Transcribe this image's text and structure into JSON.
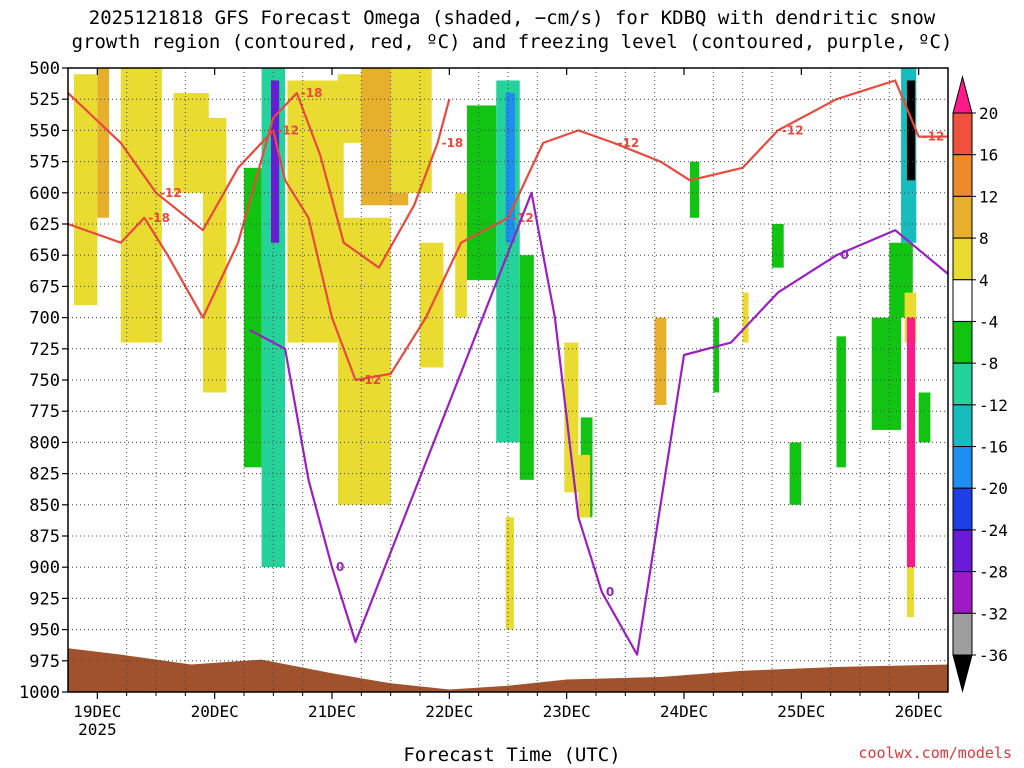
{
  "title": {
    "line1": "2025121818 GFS Forecast Omega (shaded, −cm/s) for KDBQ with dendritic snow",
    "line2": "growth region (contoured, red, ºC) and freezing level (contoured, purple, ºC)"
  },
  "credit": "coolwx.com/models",
  "colors": {
    "dgz_contour": "#e84a3f",
    "freezing_contour": "#9b1fc4",
    "terrain": "#a0522d",
    "grid": "#444444"
  },
  "chart_data": {
    "type": "heatmap",
    "xlabel": "Forecast Time (UTC)",
    "ylabel": "",
    "y_ticks": [
      "500",
      "525",
      "550",
      "575",
      "600",
      "625",
      "650",
      "675",
      "700",
      "725",
      "750",
      "775",
      "800",
      "825",
      "850",
      "875",
      "900",
      "925",
      "950",
      "975",
      "1000"
    ],
    "x_ticks": [
      "19DEC",
      "20DEC",
      "21DEC",
      "22DEC",
      "23DEC",
      "24DEC",
      "25DEC",
      "26DEC"
    ],
    "x_year": "2025",
    "ylim": [
      1000,
      500
    ],
    "xlim_days": [
      18.75,
      26.25
    ],
    "grid": true,
    "colorbar": {
      "labels": [
        "20",
        "16",
        "12",
        "8",
        "4",
        "-4",
        "-8",
        "-12",
        "-16",
        "-20",
        "-24",
        "-28",
        "-32",
        "-36"
      ],
      "colors": [
        "#ff1a8c",
        "#f0503c",
        "#ec8a2c",
        "#e6b02c",
        "#e9db2f",
        "#ffffff",
        "#12c412",
        "#23d39a",
        "#17bcbc",
        "#1e8ff0",
        "#1e3ee6",
        "#6a1ad9",
        "#9d1ac6",
        "#9e9e9e",
        "#000000"
      ]
    },
    "omega_patches": [
      {
        "x": [
          18.8,
          19.0
        ],
        "p": [
          505,
          690
        ],
        "v": 5
      },
      {
        "x": [
          19.0,
          19.1
        ],
        "p": [
          500,
          620
        ],
        "v": 10
      },
      {
        "x": [
          19.2,
          19.55
        ],
        "p": [
          500,
          720
        ],
        "v": 5
      },
      {
        "x": [
          19.65,
          19.95
        ],
        "p": [
          520,
          600
        ],
        "v": 5
      },
      {
        "x": [
          19.9,
          20.1
        ],
        "p": [
          540,
          760
        ],
        "v": 5
      },
      {
        "x": [
          20.25,
          20.4
        ],
        "p": [
          580,
          820
        ],
        "v": -6
      },
      {
        "x": [
          20.4,
          20.6
        ],
        "p": [
          500,
          900
        ],
        "v": -10
      },
      {
        "x": [
          20.48,
          20.55
        ],
        "p": [
          510,
          640
        ],
        "v": -26
      },
      {
        "x": [
          20.62,
          21.1
        ],
        "p": [
          510,
          720
        ],
        "v": 5
      },
      {
        "x": [
          21.05,
          21.35
        ],
        "p": [
          505,
          560
        ],
        "v": 5
      },
      {
        "x": [
          21.25,
          21.65
        ],
        "p": [
          500,
          610
        ],
        "v": 10
      },
      {
        "x": [
          21.5,
          21.85
        ],
        "p": [
          500,
          600
        ],
        "v": 5
      },
      {
        "x": [
          21.05,
          21.5
        ],
        "p": [
          620,
          850
        ],
        "v": 5
      },
      {
        "x": [
          21.75,
          21.95
        ],
        "p": [
          640,
          740
        ],
        "v": 5
      },
      {
        "x": [
          22.05,
          22.15
        ],
        "p": [
          600,
          700
        ],
        "v": 5
      },
      {
        "x": [
          22.15,
          22.4
        ],
        "p": [
          530,
          670
        ],
        "v": -6
      },
      {
        "x": [
          22.4,
          22.6
        ],
        "p": [
          510,
          800
        ],
        "v": -10
      },
      {
        "x": [
          22.48,
          22.56
        ],
        "p": [
          520,
          640
        ],
        "v": -18
      },
      {
        "x": [
          22.6,
          22.72
        ],
        "p": [
          650,
          830
        ],
        "v": -6
      },
      {
        "x": [
          22.48,
          22.55
        ],
        "p": [
          860,
          950
        ],
        "v": 5
      },
      {
        "x": [
          22.98,
          23.1
        ],
        "p": [
          720,
          840
        ],
        "v": 5
      },
      {
        "x": [
          23.12,
          23.22
        ],
        "p": [
          780,
          860
        ],
        "v": -6
      },
      {
        "x": [
          23.1,
          23.2
        ],
        "p": [
          810,
          860
        ],
        "v": 5
      },
      {
        "x": [
          23.75,
          23.85
        ],
        "p": [
          700,
          770
        ],
        "v": 10
      },
      {
        "x": [
          24.05,
          24.13
        ],
        "p": [
          575,
          620
        ],
        "v": -6
      },
      {
        "x": [
          24.25,
          24.3
        ],
        "p": [
          700,
          760
        ],
        "v": -6
      },
      {
        "x": [
          24.5,
          24.55
        ],
        "p": [
          680,
          720
        ],
        "v": 5
      },
      {
        "x": [
          24.75,
          24.85
        ],
        "p": [
          625,
          660
        ],
        "v": -6
      },
      {
        "x": [
          24.9,
          25.0
        ],
        "p": [
          800,
          850
        ],
        "v": -6
      },
      {
        "x": [
          25.3,
          25.38
        ],
        "p": [
          715,
          820
        ],
        "v": -6
      },
      {
        "x": [
          25.6,
          25.85
        ],
        "p": [
          700,
          790
        ],
        "v": -6
      },
      {
        "x": [
          25.75,
          25.95
        ],
        "p": [
          640,
          700
        ],
        "v": -6
      },
      {
        "x": [
          25.85,
          25.98
        ],
        "p": [
          500,
          640
        ],
        "v": -12
      },
      {
        "x": [
          25.9,
          25.97
        ],
        "p": [
          510,
          590
        ],
        "v": -36
      },
      {
        "x": [
          25.88,
          25.98
        ],
        "p": [
          680,
          720
        ],
        "v": 5
      },
      {
        "x": [
          25.9,
          25.97
        ],
        "p": [
          700,
          900
        ],
        "v": 20
      },
      {
        "x": [
          25.9,
          25.96
        ],
        "p": [
          900,
          940
        ],
        "v": 5
      },
      {
        "x": [
          26.0,
          26.1
        ],
        "p": [
          760,
          800
        ],
        "v": -6
      }
    ],
    "series": [
      {
        "name": "-12",
        "labels": [
          "-12",
          "-12",
          "-12",
          "-12",
          "-12",
          "-12",
          "-12"
        ],
        "points": [
          [
            18.75,
            520
          ],
          [
            19.2,
            560
          ],
          [
            19.5,
            600
          ],
          [
            19.9,
            630
          ],
          [
            20.2,
            580
          ],
          [
            20.5,
            550
          ],
          [
            20.6,
            590
          ],
          [
            20.8,
            620
          ],
          [
            21.0,
            700
          ],
          [
            21.2,
            750
          ],
          [
            21.5,
            745
          ],
          [
            21.8,
            700
          ],
          [
            22.1,
            640
          ],
          [
            22.5,
            620
          ],
          [
            22.8,
            560
          ],
          [
            23.1,
            550
          ],
          [
            23.4,
            560
          ],
          [
            23.8,
            575
          ],
          [
            24.05,
            590
          ],
          [
            24.5,
            580
          ],
          [
            24.8,
            550
          ],
          [
            25.3,
            525
          ],
          [
            25.8,
            510
          ],
          [
            26.0,
            555
          ],
          [
            26.25,
            555
          ]
        ]
      },
      {
        "name": "-18",
        "labels": [
          "-18",
          "-18",
          "-18"
        ],
        "points": [
          [
            18.75,
            625
          ],
          [
            19.2,
            640
          ],
          [
            19.4,
            620
          ],
          [
            19.6,
            650
          ],
          [
            19.9,
            700
          ],
          [
            20.2,
            640
          ],
          [
            20.5,
            540
          ],
          [
            20.7,
            520
          ],
          [
            20.9,
            570
          ],
          [
            21.1,
            640
          ],
          [
            21.4,
            660
          ],
          [
            21.7,
            610
          ],
          [
            21.9,
            560
          ],
          [
            22.0,
            525
          ]
        ]
      },
      {
        "name": "0",
        "labels": [
          "0",
          "0",
          "0"
        ],
        "points": [
          [
            20.3,
            710
          ],
          [
            20.6,
            725
          ],
          [
            20.8,
            830
          ],
          [
            21.0,
            900
          ],
          [
            21.2,
            960
          ],
          [
            22.7,
            600
          ],
          [
            22.9,
            700
          ],
          [
            23.1,
            860
          ],
          [
            23.3,
            920
          ],
          [
            23.6,
            970
          ],
          [
            24.0,
            730
          ],
          [
            24.4,
            720
          ],
          [
            24.8,
            680
          ],
          [
            25.3,
            650
          ],
          [
            25.8,
            630
          ],
          [
            26.25,
            665
          ]
        ]
      }
    ]
  }
}
